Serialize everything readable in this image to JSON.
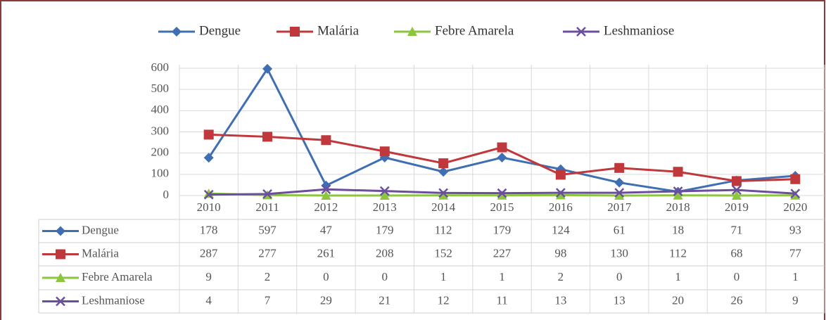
{
  "chart_data": {
    "type": "line",
    "categories": [
      "2010",
      "2011",
      "2012",
      "2013",
      "2014",
      "2015",
      "2016",
      "2017",
      "2018",
      "2019",
      "2020"
    ],
    "series": [
      {
        "name": "Dengue",
        "color": "#3f6fb2",
        "marker": "diamond",
        "values": [
          178,
          597,
          47,
          179,
          112,
          179,
          124,
          61,
          18,
          71,
          93
        ]
      },
      {
        "name": "Malária",
        "color": "#c0383b",
        "marker": "square",
        "values": [
          287,
          277,
          261,
          208,
          152,
          227,
          98,
          130,
          112,
          68,
          77
        ]
      },
      {
        "name": "Febre Amarela",
        "color": "#8cc63f",
        "marker": "triangle",
        "values": [
          9,
          2,
          0,
          0,
          1,
          1,
          2,
          0,
          1,
          0,
          1
        ]
      },
      {
        "name": "Leshmaniose",
        "color": "#6b4f9e",
        "marker": "x",
        "values": [
          4,
          7,
          29,
          21,
          12,
          11,
          13,
          13,
          20,
          26,
          9
        ]
      }
    ],
    "ylim": [
      0,
      600
    ],
    "yticks": [
      0,
      100,
      200,
      300,
      400,
      500,
      600
    ],
    "grid": true,
    "legend": "top"
  }
}
